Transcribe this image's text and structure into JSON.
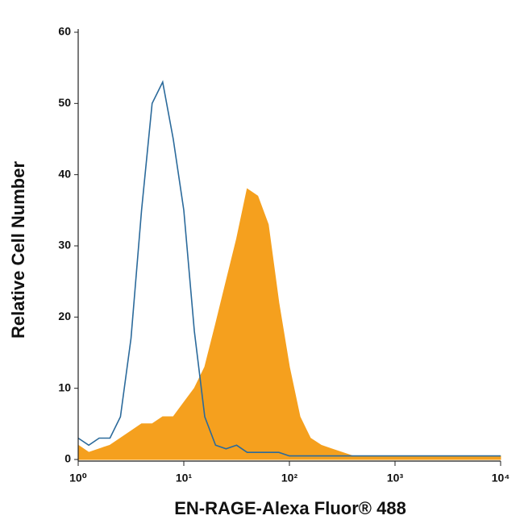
{
  "chart_data": {
    "type": "histogram-overlay",
    "xlabel": "EN-RAGE-Alexa Fluor® 488",
    "ylabel": "Relative Cell Number",
    "xscale": "log",
    "xlim": [
      1,
      10000
    ],
    "xticks": [
      {
        "value": 1,
        "label": "10⁰"
      },
      {
        "value": 10,
        "label": "10¹"
      },
      {
        "value": 100,
        "label": "10²"
      },
      {
        "value": 1000,
        "label": "10³"
      },
      {
        "value": 10000,
        "label": "10⁴"
      }
    ],
    "ylim": [
      0,
      60
    ],
    "yticks": [
      0,
      10,
      20,
      30,
      40,
      50,
      60
    ],
    "x": [
      1,
      1.26,
      1.58,
      2,
      2.51,
      3.16,
      3.98,
      5.01,
      6.31,
      7.94,
      10,
      12.6,
      15.8,
      20,
      25.1,
      31.6,
      39.8,
      50.1,
      63.1,
      79.4,
      100,
      126,
      158,
      200,
      251,
      316,
      398,
      501,
      631,
      794,
      1000,
      1259,
      1585,
      1995,
      2512,
      3162,
      3981,
      5012,
      6310,
      7943,
      10000
    ],
    "series": [
      {
        "color": "#f5a01e",
        "style": "area",
        "values": [
          2,
          1,
          1.5,
          2,
          3,
          4,
          5,
          5,
          6,
          6,
          8,
          10,
          13,
          19,
          25,
          31,
          38,
          37,
          33,
          22,
          13,
          6,
          3,
          2,
          1.5,
          1,
          0.5,
          0.5,
          0.5,
          0.5,
          0.5,
          0.5,
          0.5,
          0.5,
          0.5,
          0.5,
          0.5,
          0.5,
          0.5,
          0.5,
          0.5
        ]
      },
      {
        "color": "#2b6a9b",
        "style": "line",
        "values": [
          3,
          2,
          3,
          3,
          6,
          17,
          35,
          50,
          53,
          45,
          35,
          18,
          6,
          2,
          1.5,
          2,
          1,
          1,
          1,
          1,
          0.5,
          0.5,
          0.5,
          0.5,
          0.5,
          0.5,
          0.5,
          0.5,
          0.5,
          0.5,
          0.5,
          0.5,
          0.5,
          0.5,
          0.5,
          0.5,
          0.5,
          0.5,
          0.5,
          0.5,
          0.5
        ]
      }
    ]
  }
}
